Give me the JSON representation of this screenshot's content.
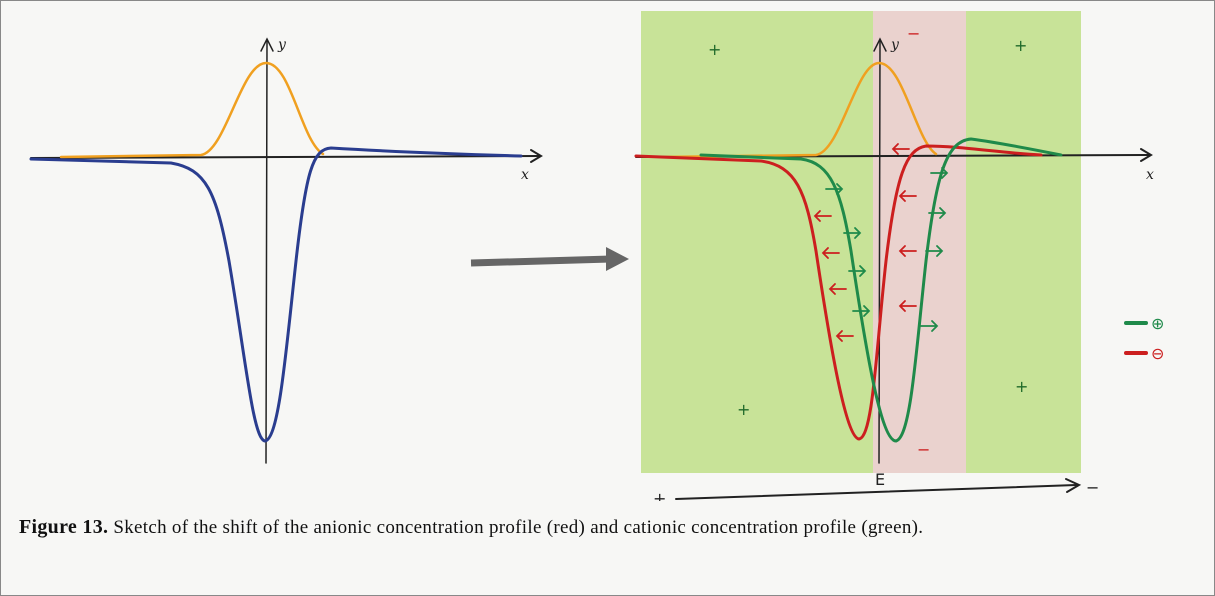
{
  "left_sketch": {
    "y_label": "y",
    "x_label": "x"
  },
  "right_sketch": {
    "y_label": "y",
    "x_label": "x",
    "signs": [
      "+",
      "−",
      "+",
      "+",
      "+",
      "−"
    ],
    "legend": [
      "⊕",
      "⊖"
    ],
    "field": {
      "start": "+",
      "label": "E",
      "end": "−"
    }
  },
  "caption": {
    "label": "Figure 13.",
    "text": "Sketch of the shift of the anionic concentration profile (red) and cationic concentration profile (green)."
  }
}
